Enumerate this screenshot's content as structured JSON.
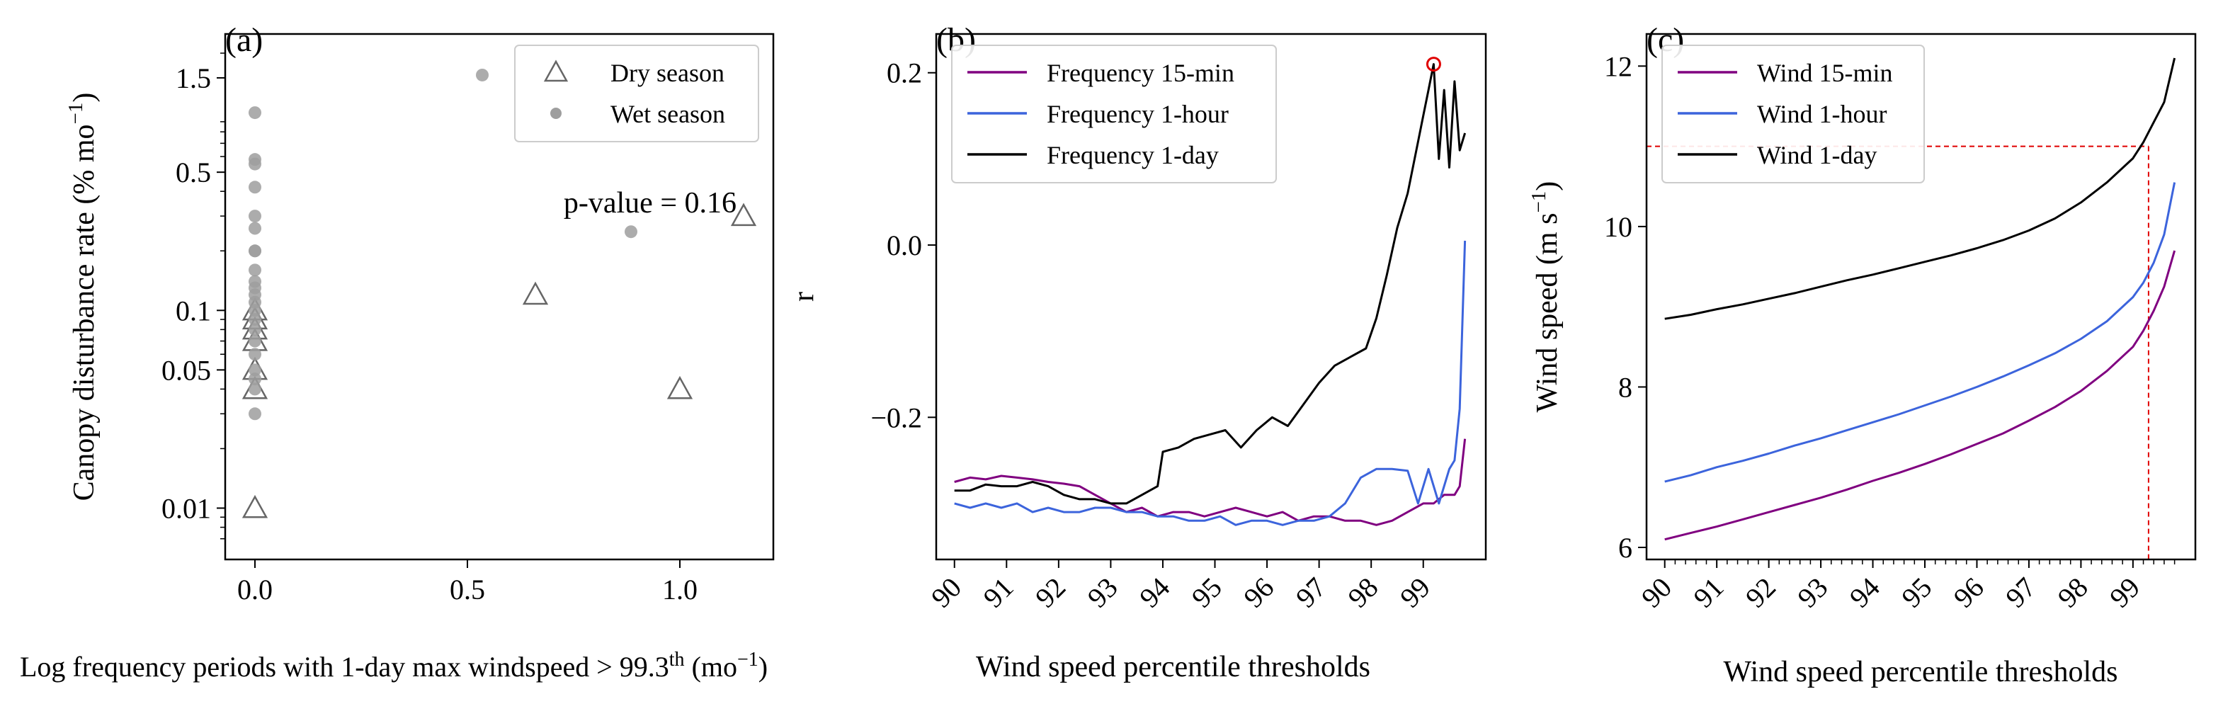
{
  "chart_data": [
    {
      "type": "scatter",
      "panel_label": "(a)",
      "xlabel": "Log frequency periods with 1-day max windspeed > 99.3",
      "xlabel_sup": "th",
      "xlabel_unit": "(mo",
      "xlabel_unit_sup": "−1",
      "xlabel_close": ")",
      "ylabel": "Canopy disturbance rate (% mo",
      "ylabel_sup": "−1",
      "ylabel_close": ")",
      "y_scale": "log",
      "xlim": [
        -0.07,
        1.22
      ],
      "ylim": [
        0.0055,
        2.5
      ],
      "x_ticks": [
        0.0,
        0.5,
        1.0
      ],
      "x_tick_labels": [
        "0.0",
        "0.5",
        "1.0"
      ],
      "y_ticks": [
        0.01,
        0.05,
        0.1,
        0.5,
        1.5
      ],
      "y_tick_labels": [
        "0.01",
        "0.05",
        "0.1",
        "0.5",
        "1.5"
      ],
      "legend_position": "top-right",
      "annotation": "p-value = 0.16",
      "series": [
        {
          "name": "Dry season",
          "marker": "triangle-open",
          "color": "#666666",
          "points": [
            [
              0,
              0.1
            ],
            [
              0,
              0.09
            ],
            [
              0,
              0.08
            ],
            [
              0,
              0.07
            ],
            [
              0,
              0.05
            ],
            [
              0,
              0.04
            ],
            [
              0,
              0.01
            ],
            [
              0.66,
              0.12
            ],
            [
              1.0,
              0.04
            ],
            [
              1.15,
              0.3
            ]
          ]
        },
        {
          "name": "Wet season",
          "marker": "circle-filled",
          "color": "#9e9e9e",
          "points": [
            [
              0,
              1.0
            ],
            [
              0,
              0.58
            ],
            [
              0,
              0.55
            ],
            [
              0,
              0.42
            ],
            [
              0,
              0.3
            ],
            [
              0,
              0.26
            ],
            [
              0,
              0.2
            ],
            [
              0,
              0.2
            ],
            [
              0,
              0.16
            ],
            [
              0,
              0.14
            ],
            [
              0,
              0.13
            ],
            [
              0,
              0.12
            ],
            [
              0,
              0.11
            ],
            [
              0,
              0.1
            ],
            [
              0,
              0.09
            ],
            [
              0,
              0.08
            ],
            [
              0,
              0.07
            ],
            [
              0,
              0.06
            ],
            [
              0,
              0.05
            ],
            [
              0,
              0.045
            ],
            [
              0,
              0.04
            ],
            [
              0,
              0.03
            ],
            [
              0.535,
              1.55
            ],
            [
              0.885,
              0.25
            ]
          ]
        }
      ]
    },
    {
      "type": "line",
      "panel_label": "(b)",
      "xlabel": "Wind speed percentile thresholds",
      "ylabel": "r",
      "xlim": [
        89.65,
        100.2
      ],
      "ylim": [
        -0.365,
        0.245
      ],
      "x_ticks": [
        90,
        91,
        92,
        93,
        94,
        95,
        96,
        97,
        98,
        99
      ],
      "x_tick_labels": [
        "90",
        "91",
        "92",
        "93",
        "94",
        "95",
        "96",
        "97",
        "98",
        "99"
      ],
      "y_ticks": [
        -0.2,
        0.0,
        0.2
      ],
      "y_tick_labels": [
        "−0.2",
        "0.0",
        "0.2"
      ],
      "legend_position": "top-left",
      "highlight_point": [
        99.2,
        0.21
      ],
      "highlight_color": "#e00000",
      "series": [
        {
          "name": "Frequency 15-min",
          "color": "#800080",
          "x": [
            90,
            90.3,
            90.6,
            90.9,
            91.2,
            91.5,
            91.8,
            92.1,
            92.4,
            92.7,
            93.0,
            93.3,
            93.6,
            93.9,
            94.2,
            94.5,
            94.8,
            95.1,
            95.4,
            95.7,
            96.0,
            96.3,
            96.6,
            96.9,
            97.2,
            97.5,
            97.8,
            98.1,
            98.4,
            98.7,
            99.0,
            99.2,
            99.4,
            99.6,
            99.7,
            99.8
          ],
          "y": [
            -0.275,
            -0.27,
            -0.272,
            -0.268,
            -0.27,
            -0.272,
            -0.275,
            -0.277,
            -0.28,
            -0.29,
            -0.3,
            -0.31,
            -0.305,
            -0.315,
            -0.31,
            -0.31,
            -0.315,
            -0.31,
            -0.305,
            -0.31,
            -0.315,
            -0.31,
            -0.32,
            -0.315,
            -0.315,
            -0.32,
            -0.32,
            -0.325,
            -0.32,
            -0.31,
            -0.3,
            -0.3,
            -0.29,
            -0.29,
            -0.28,
            -0.225
          ]
        },
        {
          "name": "Frequency 1-hour",
          "color": "#3c64dc",
          "x": [
            90,
            90.3,
            90.6,
            90.9,
            91.2,
            91.5,
            91.8,
            92.1,
            92.4,
            92.7,
            93.0,
            93.3,
            93.6,
            93.9,
            94.2,
            94.5,
            94.8,
            95.1,
            95.4,
            95.7,
            96.0,
            96.3,
            96.6,
            96.9,
            97.2,
            97.5,
            97.8,
            98.1,
            98.4,
            98.7,
            98.9,
            99.1,
            99.3,
            99.5,
            99.6,
            99.7,
            99.8
          ],
          "y": [
            -0.3,
            -0.305,
            -0.3,
            -0.305,
            -0.3,
            -0.31,
            -0.305,
            -0.31,
            -0.31,
            -0.305,
            -0.305,
            -0.31,
            -0.31,
            -0.315,
            -0.315,
            -0.32,
            -0.32,
            -0.315,
            -0.325,
            -0.32,
            -0.32,
            -0.325,
            -0.32,
            -0.32,
            -0.315,
            -0.3,
            -0.27,
            -0.26,
            -0.26,
            -0.262,
            -0.3,
            -0.26,
            -0.3,
            -0.26,
            -0.25,
            -0.19,
            0.005
          ]
        },
        {
          "name": "Frequency 1-day",
          "color": "#000000",
          "x": [
            90,
            90.3,
            90.6,
            90.9,
            91.2,
            91.5,
            91.8,
            92.1,
            92.4,
            92.7,
            93.0,
            93.3,
            93.6,
            93.9,
            94.0,
            94.3,
            94.6,
            94.9,
            95.2,
            95.5,
            95.8,
            96.1,
            96.4,
            96.7,
            97.0,
            97.3,
            97.6,
            97.9,
            98.1,
            98.3,
            98.5,
            98.7,
            98.9,
            99.0,
            99.1,
            99.2,
            99.3,
            99.4,
            99.5,
            99.6,
            99.7,
            99.8
          ],
          "y": [
            -0.285,
            -0.285,
            -0.278,
            -0.28,
            -0.28,
            -0.275,
            -0.28,
            -0.29,
            -0.295,
            -0.295,
            -0.3,
            -0.3,
            -0.29,
            -0.28,
            -0.24,
            -0.235,
            -0.225,
            -0.22,
            -0.215,
            -0.235,
            -0.215,
            -0.2,
            -0.21,
            -0.185,
            -0.16,
            -0.14,
            -0.13,
            -0.12,
            -0.085,
            -0.035,
            0.02,
            0.06,
            0.12,
            0.15,
            0.18,
            0.21,
            0.1,
            0.18,
            0.09,
            0.19,
            0.11,
            0.13
          ]
        }
      ]
    },
    {
      "type": "line",
      "panel_label": "(c)",
      "xlabel": "Wind speed percentile thresholds",
      "ylabel": "Wind speed (m s",
      "ylabel_sup": "−1",
      "ylabel_close": ")",
      "xlim": [
        89.65,
        100.2
      ],
      "ylim": [
        5.85,
        12.4
      ],
      "x_ticks": [
        90,
        91,
        92,
        93,
        94,
        95,
        96,
        97,
        98,
        99
      ],
      "x_tick_labels": [
        "90",
        "91",
        "92",
        "93",
        "94",
        "95",
        "96",
        "97",
        "98",
        "99"
      ],
      "y_ticks": [
        6,
        8,
        10,
        12
      ],
      "y_tick_labels": [
        "6",
        "8",
        "10",
        "12"
      ],
      "legend_position": "top-left",
      "reference_lines": {
        "x": 99.3,
        "y": 11.0,
        "color": "#e00000"
      },
      "series": [
        {
          "name": "Wind 15-min",
          "color": "#800080",
          "x": [
            90,
            90.5,
            91,
            91.5,
            92,
            92.5,
            93,
            93.5,
            94,
            94.5,
            95,
            95.5,
            96,
            96.5,
            97,
            97.5,
            98,
            98.5,
            99,
            99.2,
            99.4,
            99.6,
            99.8
          ],
          "y": [
            6.1,
            6.18,
            6.26,
            6.35,
            6.44,
            6.53,
            6.62,
            6.72,
            6.83,
            6.93,
            7.04,
            7.16,
            7.29,
            7.42,
            7.58,
            7.75,
            7.95,
            8.2,
            8.5,
            8.7,
            8.95,
            9.25,
            9.7
          ]
        },
        {
          "name": "Wind 1-hour",
          "color": "#3c64dc",
          "x": [
            90,
            90.5,
            91,
            91.5,
            92,
            92.5,
            93,
            93.5,
            94,
            94.5,
            95,
            95.5,
            96,
            96.5,
            97,
            97.5,
            98,
            98.5,
            99,
            99.2,
            99.4,
            99.6,
            99.8
          ],
          "y": [
            6.82,
            6.9,
            7.0,
            7.08,
            7.17,
            7.27,
            7.36,
            7.46,
            7.56,
            7.66,
            7.77,
            7.88,
            8.0,
            8.13,
            8.27,
            8.42,
            8.6,
            8.82,
            9.12,
            9.3,
            9.55,
            9.9,
            10.55
          ]
        },
        {
          "name": "Wind 1-day",
          "color": "#000000",
          "x": [
            90,
            90.5,
            91,
            91.5,
            92,
            92.5,
            93,
            93.5,
            94,
            94.5,
            95,
            95.5,
            96,
            96.5,
            97,
            97.5,
            98,
            98.5,
            99,
            99.2,
            99.4,
            99.6,
            99.8
          ],
          "y": [
            8.85,
            8.9,
            8.97,
            9.03,
            9.1,
            9.17,
            9.25,
            9.33,
            9.4,
            9.48,
            9.56,
            9.64,
            9.73,
            9.83,
            9.95,
            10.1,
            10.3,
            10.55,
            10.85,
            11.05,
            11.3,
            11.55,
            12.1
          ]
        }
      ]
    }
  ]
}
